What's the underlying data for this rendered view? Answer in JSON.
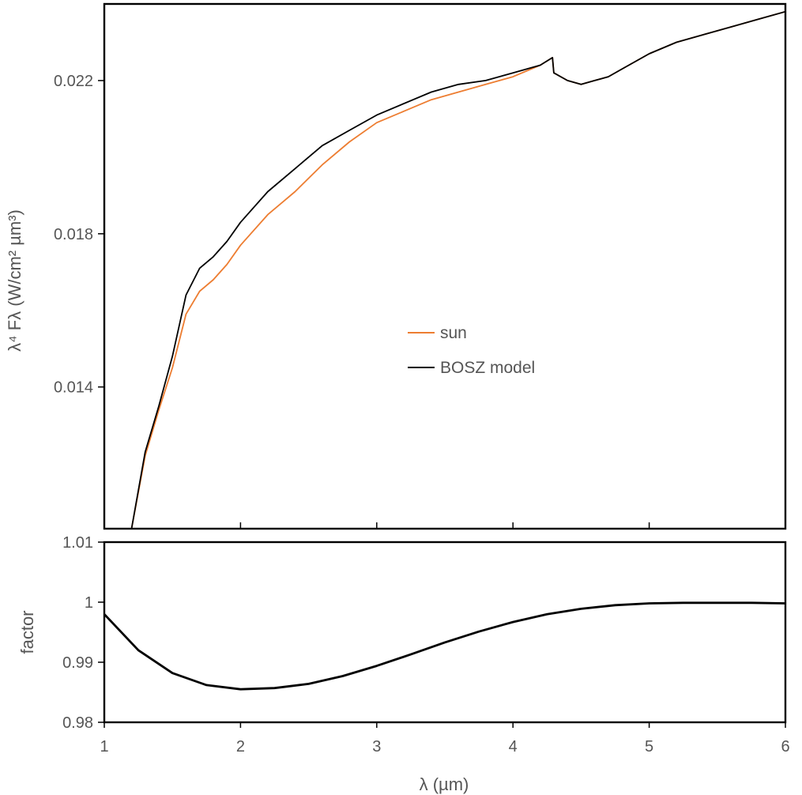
{
  "chart_data": [
    {
      "type": "line",
      "panel": "top",
      "ylabel": "λ⁴ Fλ (W/cm² µm³)",
      "xlim": [
        1,
        6
      ],
      "ylim": [
        0.0103,
        0.024
      ],
      "yticks": [
        0.014,
        0.018,
        0.022
      ],
      "ytick_labels": [
        "0.014",
        "0.018",
        "0.022"
      ],
      "xticks": [
        2,
        3,
        4,
        5
      ],
      "legend": {
        "position": "center",
        "entries": [
          "sun",
          "BOSZ model"
        ]
      },
      "grid": false,
      "series": [
        {
          "name": "sun",
          "color": "#ED7D31",
          "x": [
            1.2,
            1.3,
            1.4,
            1.5,
            1.6,
            1.7,
            1.8,
            1.9,
            2.0,
            2.2,
            2.4,
            2.6,
            2.8,
            3.0,
            3.2,
            3.4,
            3.6,
            3.8,
            4.0,
            4.2,
            4.29,
            4.3,
            4.4,
            4.5,
            4.6,
            4.7,
            4.8,
            5.0,
            5.2,
            5.4,
            5.6,
            5.8,
            6.0
          ],
          "y": [
            0.0103,
            0.0122,
            0.0134,
            0.0145,
            0.0159,
            0.0165,
            0.0168,
            0.0172,
            0.0177,
            0.0185,
            0.0191,
            0.0198,
            0.0204,
            0.0209,
            0.0212,
            0.0215,
            0.0217,
            0.0219,
            0.0221,
            0.0224,
            0.0226,
            0.0222,
            0.022,
            0.0219,
            0.022,
            0.0221,
            0.0223,
            0.0227,
            0.023,
            0.0232,
            0.0234,
            0.0236,
            0.0238
          ]
        },
        {
          "name": "BOSZ model",
          "color": "#000000",
          "x": [
            1.2,
            1.3,
            1.4,
            1.5,
            1.6,
            1.7,
            1.8,
            1.9,
            2.0,
            2.2,
            2.4,
            2.6,
            2.8,
            3.0,
            3.2,
            3.4,
            3.6,
            3.8,
            4.0,
            4.2,
            4.29,
            4.3,
            4.4,
            4.5,
            4.6,
            4.7,
            4.8,
            5.0,
            5.2,
            5.4,
            5.6,
            5.8,
            6.0
          ],
          "y": [
            0.0103,
            0.0123,
            0.0135,
            0.0148,
            0.0164,
            0.0171,
            0.0174,
            0.0178,
            0.0183,
            0.0191,
            0.0197,
            0.0203,
            0.0207,
            0.0211,
            0.0214,
            0.0217,
            0.0219,
            0.022,
            0.0222,
            0.0224,
            0.0226,
            0.0222,
            0.022,
            0.0219,
            0.022,
            0.0221,
            0.0223,
            0.0227,
            0.023,
            0.0232,
            0.0234,
            0.0236,
            0.0238
          ]
        }
      ]
    },
    {
      "type": "line",
      "panel": "bottom",
      "xlabel": "λ (µm)",
      "ylabel": "factor",
      "xlim": [
        1,
        6
      ],
      "ylim": [
        0.98,
        1.01
      ],
      "yticks": [
        0.98,
        0.99,
        1.0,
        1.01
      ],
      "ytick_labels": [
        "0.98",
        "0.99",
        "1",
        "1.01"
      ],
      "xticks": [
        1,
        2,
        3,
        4,
        5,
        6
      ],
      "xtick_labels": [
        "1",
        "2",
        "3",
        "4",
        "5",
        "6"
      ],
      "grid": false,
      "series": [
        {
          "color": "#000000",
          "x": [
            1.0,
            1.25,
            1.5,
            1.75,
            2.0,
            2.25,
            2.5,
            2.75,
            3.0,
            3.25,
            3.5,
            3.75,
            4.0,
            4.25,
            4.5,
            4.75,
            5.0,
            5.25,
            5.5,
            5.75,
            6.0
          ],
          "y": [
            0.998,
            0.992,
            0.9882,
            0.9862,
            0.9855,
            0.9857,
            0.9864,
            0.9877,
            0.9894,
            0.9913,
            0.9933,
            0.9951,
            0.9967,
            0.998,
            0.9989,
            0.9995,
            0.9998,
            0.9999,
            0.9999,
            0.9999,
            0.9998
          ]
        }
      ]
    }
  ]
}
